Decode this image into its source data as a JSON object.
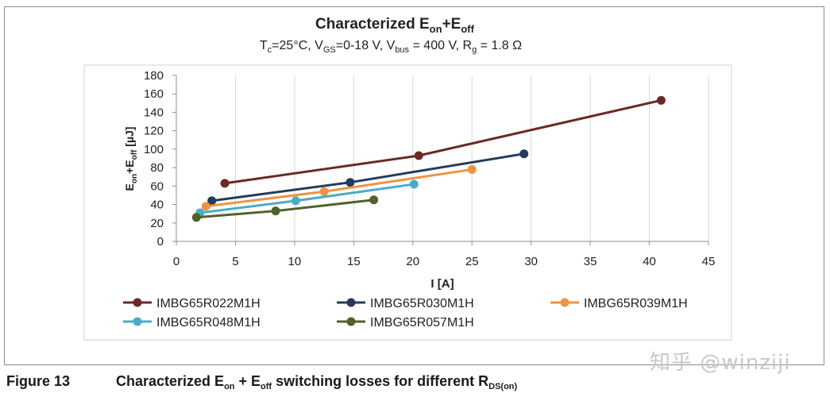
{
  "chart_data": {
    "type": "line",
    "title": {
      "main": "Characterized E",
      "sub1": "on",
      "mid": "+E",
      "sub2": "off"
    },
    "subtitle": {
      "p1": "T",
      "s1": "c",
      "p2": "=25°C, V",
      "s2": "GS",
      "p3": "=0-18 V, V",
      "s3": "bus",
      "p4": " = 400 V, R",
      "s4": "g",
      "p5": " = 1.8 Ω"
    },
    "ylabel": {
      "p1": "E",
      "s1": "on",
      "p2": "+E",
      "s2": "off",
      "p3": "  [µJ]"
    },
    "xlabel": "I [A]",
    "xlim": [
      0,
      45
    ],
    "ylim": [
      0,
      180
    ],
    "xticks": [
      0,
      5,
      10,
      15,
      20,
      25,
      30,
      35,
      40,
      45
    ],
    "yticks": [
      0,
      20,
      40,
      60,
      80,
      100,
      120,
      140,
      160,
      180
    ],
    "grid": "vertical",
    "series": [
      {
        "name": "IMBG65R022M1H",
        "color": "#6b2a24",
        "x": [
          4.1,
          20.5,
          41.0
        ],
        "y": [
          63,
          93,
          153
        ]
      },
      {
        "name": "IMBG65R030M1H",
        "color": "#243c5c",
        "x": [
          3.0,
          14.7,
          29.4
        ],
        "y": [
          44,
          64,
          95
        ]
      },
      {
        "name": "IMBG65R039M1H",
        "color": "#ee9346",
        "x": [
          2.5,
          12.5,
          25.0
        ],
        "y": [
          38,
          54,
          78
        ]
      },
      {
        "name": "IMBG65R048M1H",
        "color": "#4bacc6",
        "x": [
          2.0,
          10.1,
          20.1
        ],
        "y": [
          31,
          44,
          62
        ]
      },
      {
        "name": "IMBG65R057M1H",
        "color": "#4f6228",
        "x": [
          1.7,
          8.4,
          16.7
        ],
        "y": [
          26,
          33,
          45
        ]
      }
    ]
  },
  "caption": {
    "figure": "Figure 13",
    "p1": "Characterized E",
    "s1": "on",
    "p2": " + E",
    "s2": "off",
    "p3": " switching losses for different R",
    "s3": "DS(on)"
  },
  "watermark": "知乎 @winziji"
}
